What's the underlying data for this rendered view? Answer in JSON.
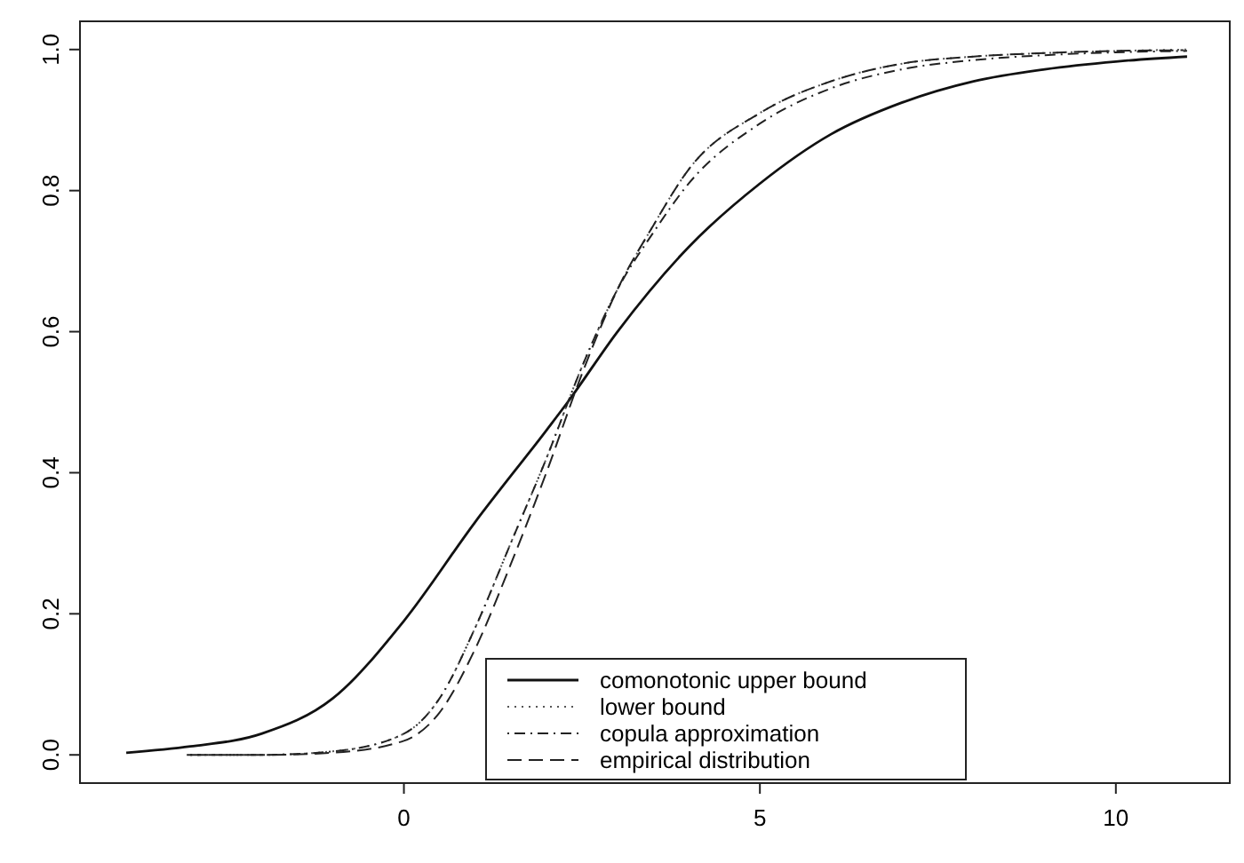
{
  "chart_data": {
    "type": "line",
    "xlim": [
      -4.55,
      11.6
    ],
    "ylim": [
      -0.04,
      1.04
    ],
    "xticks": [
      0,
      5,
      10
    ],
    "yticks": [
      {
        "value": 0,
        "label": "0.0"
      },
      0.2,
      0.4,
      0.6,
      0.8,
      {
        "value": 1,
        "label": "1.0"
      }
    ],
    "grid": false,
    "legend": "bottom",
    "series": [
      {
        "name": "comonotonic upper bound",
        "color": "#111111",
        "line_style": "solid",
        "x": [
          -3.9,
          -3,
          -2,
          -1,
          0,
          1,
          2,
          2.3,
          3,
          4,
          5,
          6,
          7,
          8,
          9,
          10,
          11
        ],
        "values": [
          0.003,
          0.012,
          0.03,
          0.08,
          0.19,
          0.33,
          0.46,
          0.5,
          0.6,
          0.72,
          0.81,
          0.88,
          0.925,
          0.955,
          0.972,
          0.983,
          0.99
        ]
      },
      {
        "name": "lower bound",
        "color": "#555555",
        "line_style": "dotted",
        "x": [
          -3,
          -2,
          -1,
          0,
          0.5,
          1,
          1.5,
          2,
          2.5,
          3,
          3.5,
          4,
          5,
          6,
          7,
          8,
          9,
          10,
          11
        ],
        "values": [
          0,
          0,
          0.005,
          0.03,
          0.08,
          0.18,
          0.3,
          0.42,
          0.55,
          0.66,
          0.75,
          0.83,
          0.91,
          0.955,
          0.98,
          0.99,
          0.995,
          0.998,
          1.0
        ]
      },
      {
        "name": "copula approximation",
        "color": "#222222",
        "line_style": "dashdot",
        "x": [
          -3,
          -2,
          -1,
          0,
          0.5,
          1,
          1.5,
          2,
          2.5,
          3,
          3.5,
          4,
          5,
          6,
          7,
          8,
          9,
          10,
          11
        ],
        "values": [
          0,
          0,
          0.005,
          0.03,
          0.08,
          0.18,
          0.3,
          0.42,
          0.55,
          0.66,
          0.74,
          0.81,
          0.895,
          0.945,
          0.972,
          0.985,
          0.992,
          0.996,
          0.998
        ]
      },
      {
        "name": "empirical distribution",
        "color": "#222222",
        "line_style": "dashed",
        "x": [
          -3.05,
          -2,
          -1,
          0,
          0.5,
          1,
          1.5,
          2,
          2.5,
          3,
          3.5,
          4,
          5,
          6,
          7,
          8,
          9,
          10,
          10.95
        ],
        "values": [
          0,
          0,
          0.003,
          0.02,
          0.06,
          0.15,
          0.27,
          0.4,
          0.54,
          0.66,
          0.75,
          0.83,
          0.91,
          0.955,
          0.98,
          0.99,
          0.995,
          0.998,
          0.999
        ]
      }
    ]
  }
}
